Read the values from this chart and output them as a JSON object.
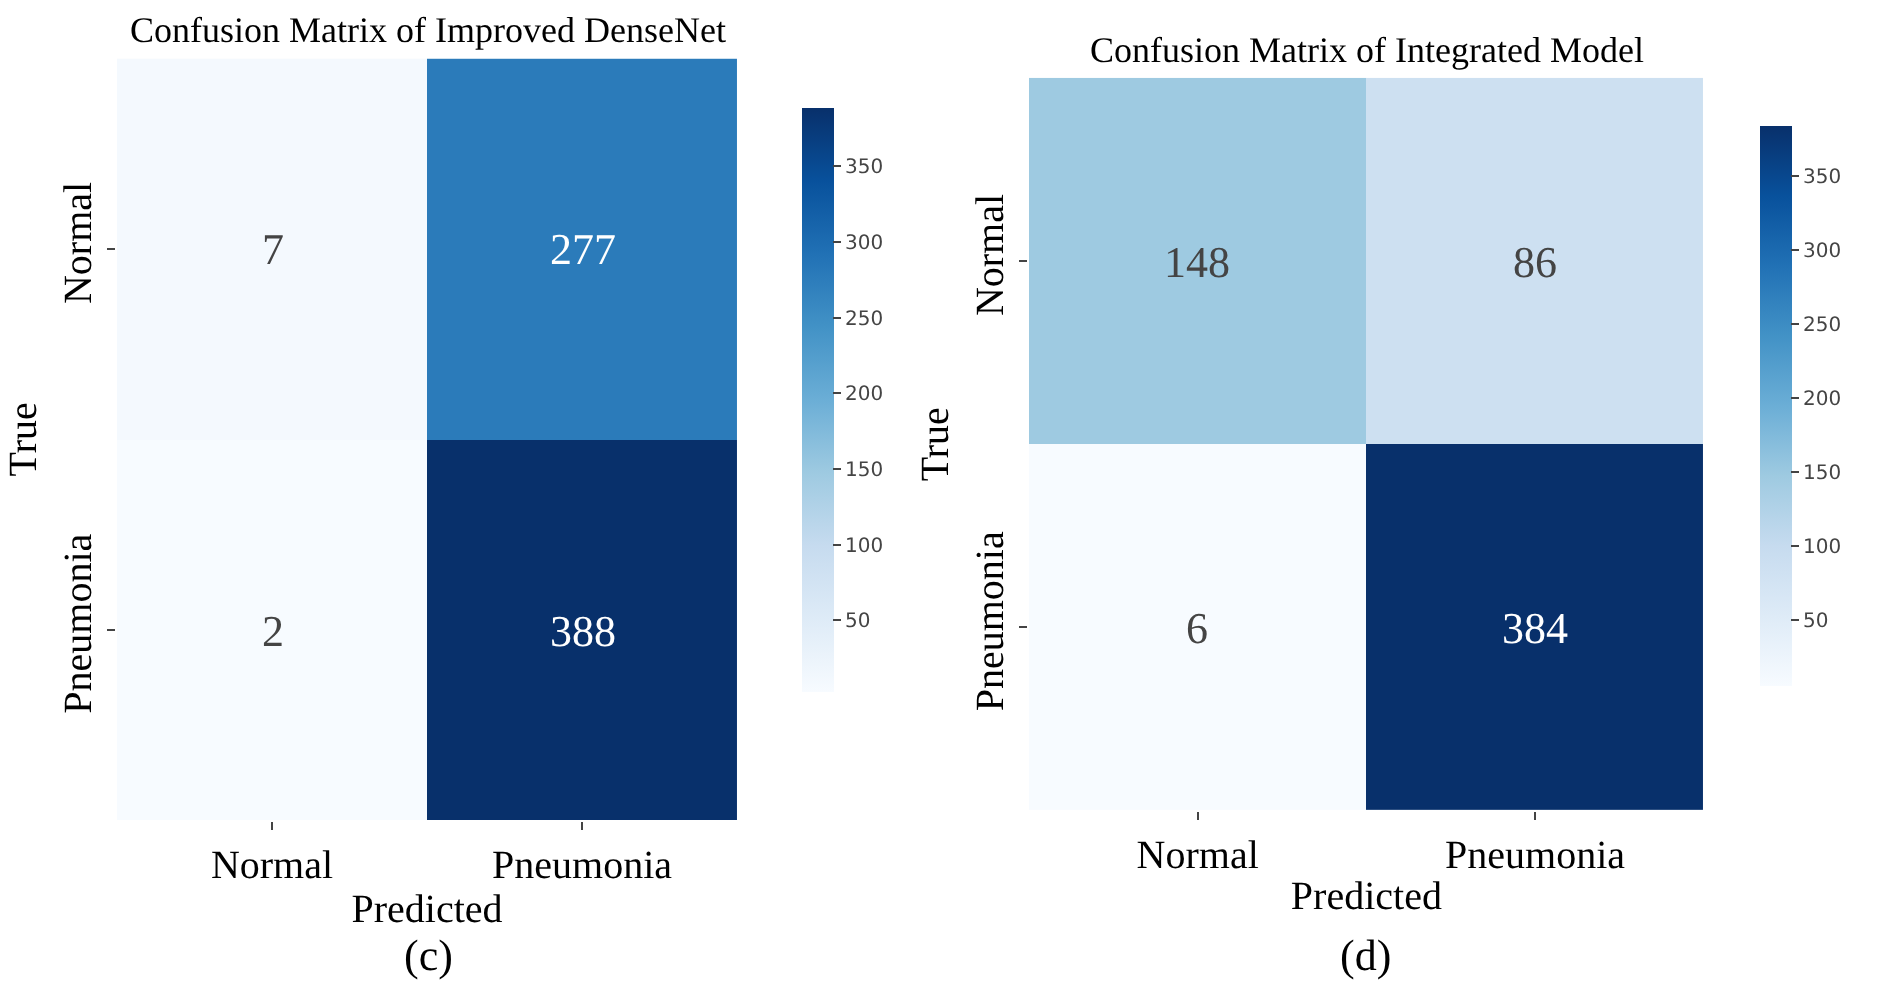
{
  "chart_data": [
    {
      "type": "heatmap",
      "title": "Confusion Matrix of Improved DenseNet",
      "xlabel": "Predicted",
      "ylabel": "True",
      "categories": [
        "Normal",
        "Pneumonia"
      ],
      "y_categories": [
        "Normal",
        "Pneumonia"
      ],
      "cells": [
        [
          7,
          277
        ],
        [
          2,
          388
        ]
      ],
      "data_labels": true,
      "clim": [
        2,
        388
      ],
      "cticks": [
        50,
        100,
        150,
        200,
        250,
        300,
        350
      ],
      "annotations": [
        "(c)"
      ]
    },
    {
      "type": "heatmap",
      "title": "Confusion Matrix of Integrated Model",
      "xlabel": "Predicted",
      "ylabel": "True",
      "categories": [
        "Normal",
        "Pneumonia"
      ],
      "y_categories": [
        "Normal",
        "Pneumonia"
      ],
      "cells": [
        [
          148,
          86
        ],
        [
          6,
          384
        ]
      ],
      "data_labels": true,
      "clim": [
        6,
        384
      ],
      "cticks": [
        50,
        100,
        150,
        200,
        250,
        300,
        350
      ],
      "annotations": [
        "(d)"
      ]
    }
  ]
}
